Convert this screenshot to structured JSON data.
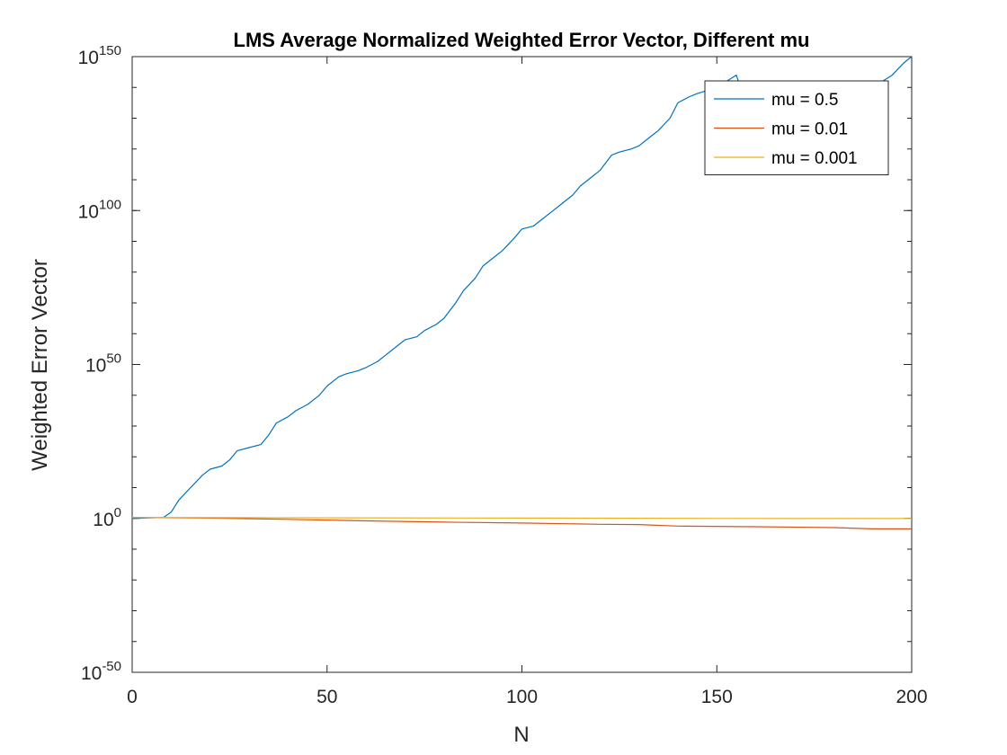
{
  "chart_data": {
    "type": "line",
    "title": "LMS Average Normalized Weighted Error Vector, Different mu",
    "xlabel": "N",
    "ylabel": "Weighted Error Vector",
    "xlim": [
      0,
      200
    ],
    "ylim_log10": [
      -50,
      150
    ],
    "y_scale": "log",
    "grid": false,
    "legend_position": "top-right",
    "x_ticks": [
      0,
      50,
      100,
      150,
      200
    ],
    "x_tick_labels": [
      "0",
      "50",
      "100",
      "150",
      "200"
    ],
    "y_tick_exponents": [
      -50,
      0,
      50,
      100,
      150
    ],
    "y_tick_base": "10",
    "y_tick_exponent_labels": [
      "-50",
      "0",
      "50",
      "100",
      "150"
    ],
    "series": [
      {
        "name": "mu = 0.5",
        "color": "#0072BD",
        "x": [
          0,
          8,
          10,
          12,
          15,
          18,
          20,
          23,
          25,
          27,
          30,
          33,
          35,
          37,
          40,
          42,
          45,
          48,
          50,
          53,
          55,
          58,
          60,
          63,
          65,
          68,
          70,
          73,
          75,
          78,
          80,
          83,
          85,
          88,
          90,
          93,
          95,
          98,
          100,
          103,
          105,
          108,
          110,
          113,
          115,
          118,
          120,
          123,
          125,
          128,
          130,
          133,
          135,
          138,
          140,
          143,
          145,
          150,
          155,
          160,
          165,
          170,
          175,
          180,
          185,
          190,
          195,
          198,
          200
        ],
        "log10_y": [
          0,
          0.3,
          2,
          6,
          10,
          14,
          16,
          17,
          19,
          22,
          23,
          24,
          27,
          31,
          33,
          35,
          37,
          40,
          43,
          46,
          47,
          48,
          49,
          51,
          53,
          56,
          58,
          59,
          61,
          63,
          65,
          70,
          74,
          78,
          82,
          85,
          87,
          91,
          94,
          95,
          97,
          100,
          102,
          105,
          108,
          111,
          113,
          118,
          119,
          120,
          121,
          124,
          126,
          130,
          135,
          137,
          138,
          140,
          144,
          126,
          128,
          130,
          133,
          136,
          138,
          140,
          144,
          148,
          150
        ]
      },
      {
        "name": "mu = 0.01",
        "color": "#D95319",
        "x": [
          0,
          20,
          40,
          60,
          80,
          100,
          120,
          130,
          140,
          160,
          180,
          190,
          200
        ],
        "log10_y": [
          0.3,
          0.1,
          -0.3,
          -0.8,
          -1.2,
          -1.5,
          -1.9,
          -2.0,
          -2.5,
          -2.7,
          -3.0,
          -3.4,
          -3.4
        ]
      },
      {
        "name": "mu = 0.001",
        "color": "#EDB120",
        "x": [
          0,
          50,
          100,
          150,
          200
        ],
        "log10_y": [
          0.3,
          0.2,
          0.1,
          0.0,
          -0.05
        ]
      }
    ]
  }
}
